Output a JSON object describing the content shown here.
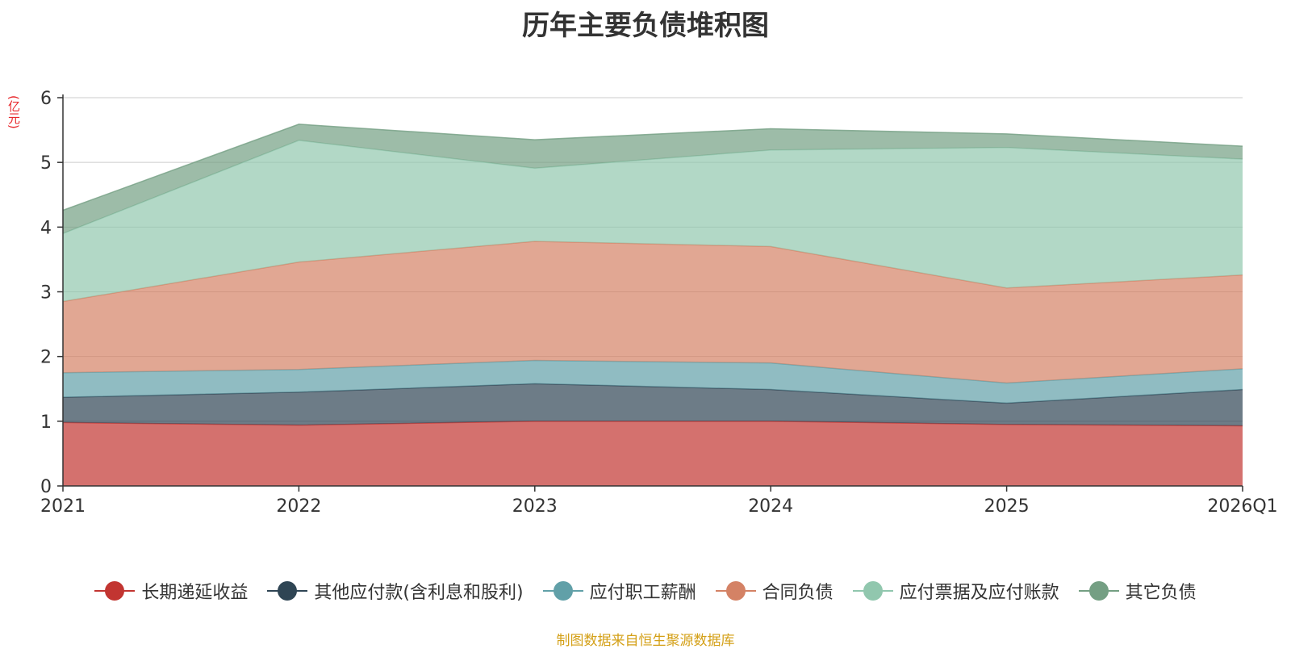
{
  "chart_data": {
    "type": "area",
    "stacked": true,
    "title": "历年主要负债堆积图",
    "ylabel": "(亿元)",
    "xlabel": "",
    "categories": [
      "2021",
      "2022",
      "2023",
      "2024",
      "2025",
      "2026Q1"
    ],
    "ylim": [
      0,
      6
    ],
    "yticks": [
      0,
      1,
      2,
      3,
      4,
      5,
      6
    ],
    "grid": true,
    "legend_position": "bottom",
    "series": [
      {
        "name": "长期递延收益",
        "color": "#c23531",
        "values": [
          0.98,
          0.94,
          1.0,
          1.0,
          0.95,
          0.93
        ]
      },
      {
        "name": "其他应付款(含利息和股利)",
        "color": "#2f4554",
        "values": [
          0.39,
          0.51,
          0.58,
          0.49,
          0.33,
          0.56
        ]
      },
      {
        "name": "应付职工薪酬",
        "color": "#61a0a8",
        "values": [
          0.38,
          0.35,
          0.36,
          0.41,
          0.31,
          0.32
        ]
      },
      {
        "name": "合同负债",
        "color": "#d48265",
        "values": [
          1.1,
          1.66,
          1.84,
          1.8,
          1.47,
          1.45
        ]
      },
      {
        "name": "应付票据及应付账款",
        "color": "#91c7ae",
        "values": [
          1.05,
          1.88,
          1.13,
          1.49,
          2.17,
          1.79
        ]
      },
      {
        "name": "其它负债",
        "color": "#749f83",
        "values": [
          0.36,
          0.25,
          0.44,
          0.33,
          0.21,
          0.2
        ]
      }
    ]
  },
  "source_note": "制图数据来自恒生聚源数据库"
}
